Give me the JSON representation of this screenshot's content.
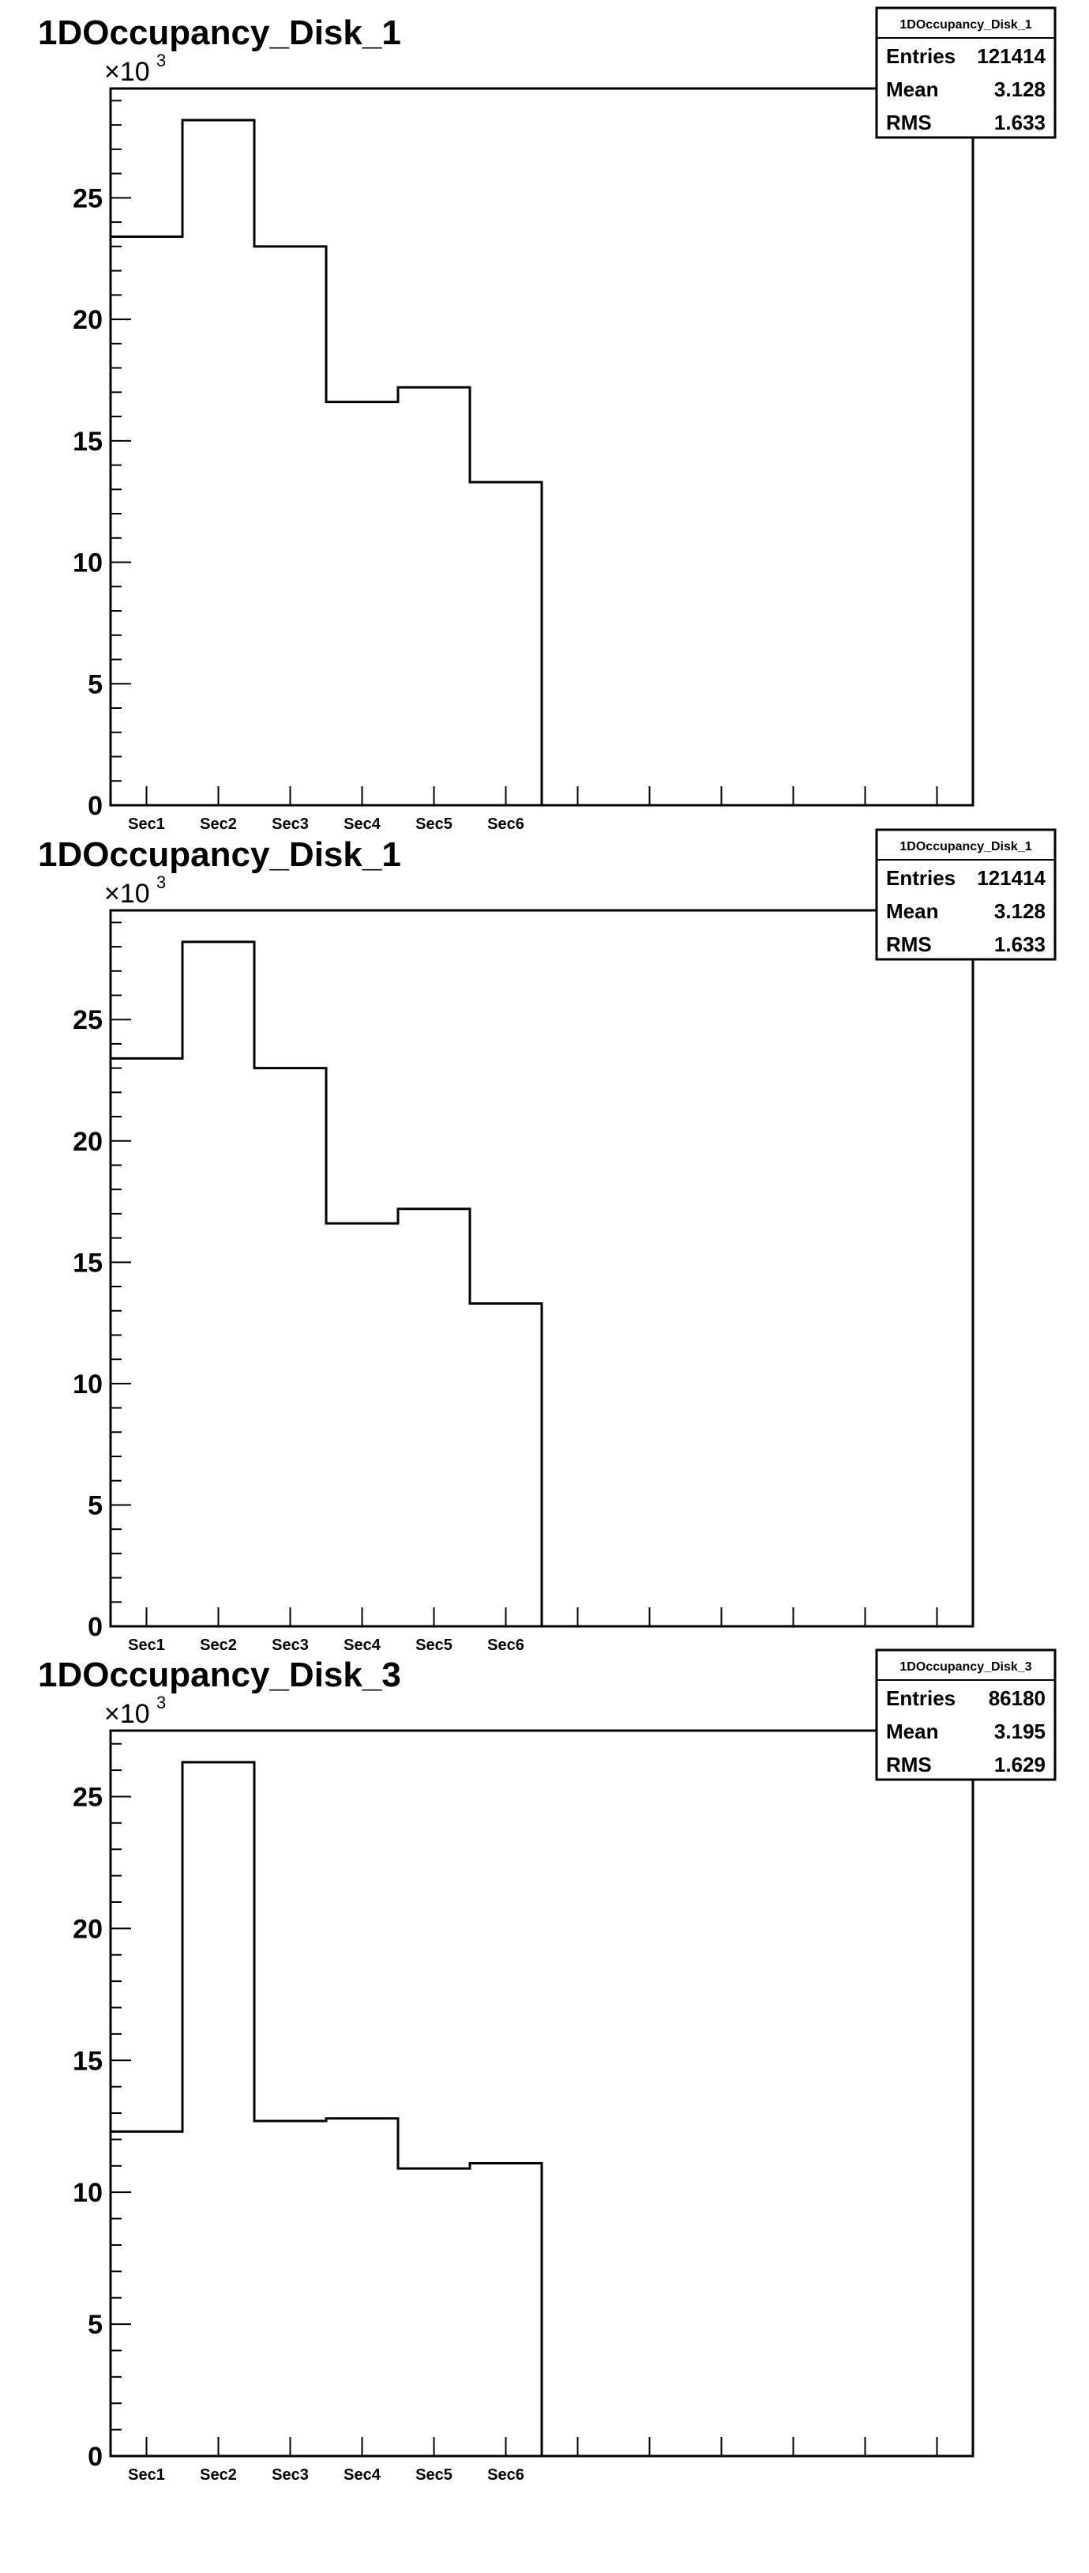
{
  "chart_data": [
    {
      "type": "bar",
      "title": "1DOccupancy_Disk_1",
      "multiplier_base": "×10",
      "multiplier_exp": "3",
      "categories": [
        "Sec1",
        "Sec2",
        "Sec3",
        "Sec4",
        "Sec5",
        "Sec6"
      ],
      "values": [
        23400,
        28200,
        23000,
        16600,
        17200,
        13300
      ],
      "ylim": [
        0,
        29500
      ],
      "yticks": [
        0,
        5,
        10,
        15,
        20,
        25
      ],
      "stats": {
        "name": "1DOccupancy_Disk_1",
        "rows": [
          {
            "key": "Entries",
            "value": "121414"
          },
          {
            "key": "Mean",
            "value": "3.128"
          },
          {
            "key": "RMS",
            "value": "1.633"
          }
        ]
      }
    },
    {
      "type": "bar",
      "title": "1DOccupancy_Disk_1",
      "multiplier_base": "×10",
      "multiplier_exp": "3",
      "categories": [
        "Sec1",
        "Sec2",
        "Sec3",
        "Sec4",
        "Sec5",
        "Sec6"
      ],
      "values": [
        23400,
        28200,
        23000,
        16600,
        17200,
        13300
      ],
      "ylim": [
        0,
        29500
      ],
      "yticks": [
        0,
        5,
        10,
        15,
        20,
        25
      ],
      "stats": {
        "name": "1DOccupancy_Disk_1",
        "rows": [
          {
            "key": "Entries",
            "value": "121414"
          },
          {
            "key": "Mean",
            "value": "3.128"
          },
          {
            "key": "RMS",
            "value": "1.633"
          }
        ]
      }
    },
    {
      "type": "bar",
      "title": "1DOccupancy_Disk_3",
      "multiplier_base": "×10",
      "multiplier_exp": "3",
      "categories": [
        "Sec1",
        "Sec2",
        "Sec3",
        "Sec4",
        "Sec5",
        "Sec6"
      ],
      "values": [
        12300,
        26300,
        12700,
        12800,
        10900,
        11100
      ],
      "ylim": [
        0,
        27500
      ],
      "yticks": [
        0,
        5,
        10,
        15,
        20,
        25
      ],
      "stats": {
        "name": "1DOccupancy_Disk_3",
        "rows": [
          {
            "key": "Entries",
            "value": "86180"
          },
          {
            "key": "Mean",
            "value": "3.195"
          },
          {
            "key": "RMS",
            "value": "1.629"
          }
        ]
      }
    }
  ]
}
